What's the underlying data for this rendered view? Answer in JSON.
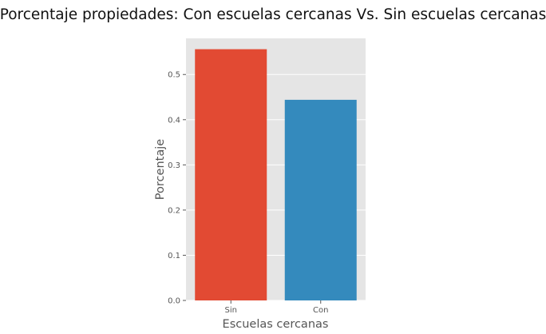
{
  "chart_data": {
    "type": "bar",
    "title": "Porcentaje propiedades: Con escuelas cercanas Vs. Sin escuelas cercanas",
    "xlabel": "Escuelas cercanas",
    "ylabel": "Porcentaje",
    "categories": [
      "Sin",
      "Con"
    ],
    "values": [
      0.556,
      0.444
    ],
    "ylim": [
      0,
      0.58
    ],
    "yticks": [
      "0.0",
      "0.1",
      "0.2",
      "0.3",
      "0.4",
      "0.5"
    ],
    "colors": [
      "#E24A33",
      "#348ABD"
    ],
    "background": "#E5E5E5",
    "gridline_color": "#FFFFFF",
    "grid": true
  }
}
